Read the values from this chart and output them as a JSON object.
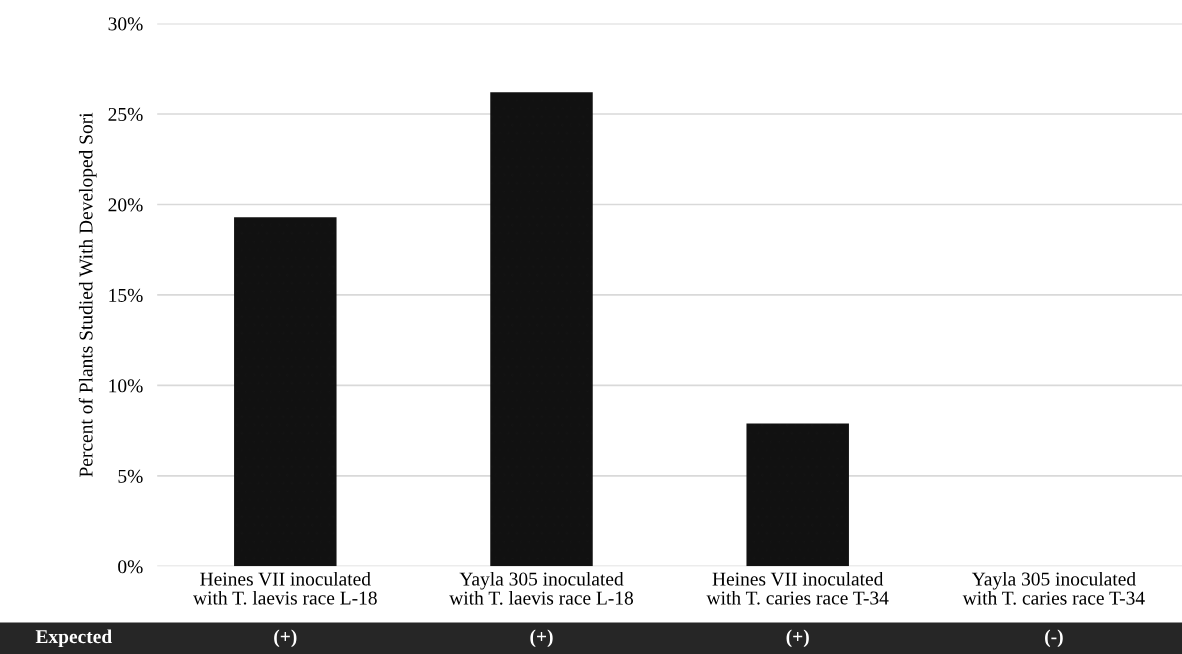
{
  "chart_data": {
    "type": "bar",
    "ylabel": "Percent of Plants Studied With Developed Sori",
    "categories": [
      "Heines VII inoculated\nwith T. laevis race L-18",
      "Yayla 305 inoculated\nwith T. laevis race L-18",
      "Heines VII inoculated\nwith T. caries race T-34",
      "Yayla 305 inoculated\nwith T. caries race T-34"
    ],
    "values": [
      19.3,
      26.2,
      7.9,
      0
    ],
    "color": "#111111",
    "ylim": [
      0,
      30
    ],
    "yticks": [
      {
        "value": 0,
        "label": "0%"
      },
      {
        "value": 5,
        "label": "5%"
      },
      {
        "value": 10,
        "label": "10%"
      },
      {
        "value": 15,
        "label": "15%"
      },
      {
        "value": 20,
        "label": "20%"
      },
      {
        "value": 25,
        "label": "25%"
      },
      {
        "value": 30,
        "label": "30%"
      }
    ],
    "grid": "y",
    "annotations": [
      "Expected",
      "(+)",
      "(+)",
      "(+)",
      "(-)"
    ]
  }
}
